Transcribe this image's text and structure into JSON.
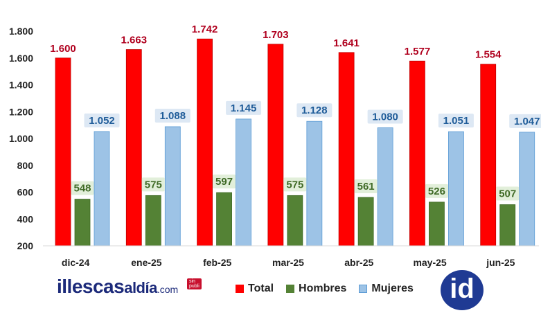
{
  "chart_data": {
    "type": "bar",
    "categories": [
      "dic-24",
      "ene-25",
      "feb-25",
      "mar-25",
      "abr-25",
      "may-25",
      "jun-25"
    ],
    "series": [
      {
        "name": "Total",
        "color": "#ff0000",
        "values": [
          1600,
          1663,
          1742,
          1703,
          1641,
          1577,
          1554
        ],
        "labels": [
          "1.600",
          "1.663",
          "1.742",
          "1.703",
          "1.641",
          "1.577",
          "1.554"
        ],
        "label_color": "#b0001e"
      },
      {
        "name": "Hombres",
        "color": "#548235",
        "values": [
          548,
          575,
          597,
          575,
          561,
          526,
          507
        ],
        "labels": [
          "548",
          "575",
          "597",
          "575",
          "561",
          "526",
          "507"
        ],
        "label_color": "#3f6a26",
        "label_bg": "#e2efda"
      },
      {
        "name": "Mujeres",
        "color": "#9dc3e6",
        "values": [
          1052,
          1088,
          1145,
          1128,
          1080,
          1051,
          1047
        ],
        "labels": [
          "1.052",
          "1.088",
          "1.145",
          "1.128",
          "1.080",
          "1.051",
          "1.047"
        ],
        "label_color": "#1f5c99",
        "label_bg": "#dde8f4"
      }
    ],
    "yticks": [
      "200",
      "400",
      "600",
      "800",
      "1.000",
      "1.200",
      "1.400",
      "1.600",
      "1.800"
    ],
    "ytick_values": [
      200,
      400,
      600,
      800,
      1000,
      1200,
      1400,
      1600,
      1800
    ],
    "ylim": [
      200,
      1800
    ],
    "grid": false,
    "legend": "bottom-center"
  },
  "legend_items": [
    {
      "label": "Total",
      "color": "#ff0000"
    },
    {
      "label": "Hombres",
      "color": "#548235"
    },
    {
      "label": "Mujeres",
      "color": "#9dc3e6"
    }
  ],
  "logo": {
    "main": "illescas",
    "accent": "aldía",
    "suffix": ".com",
    "badge": "sin publi"
  },
  "id_logo": {
    "text": "id"
  }
}
